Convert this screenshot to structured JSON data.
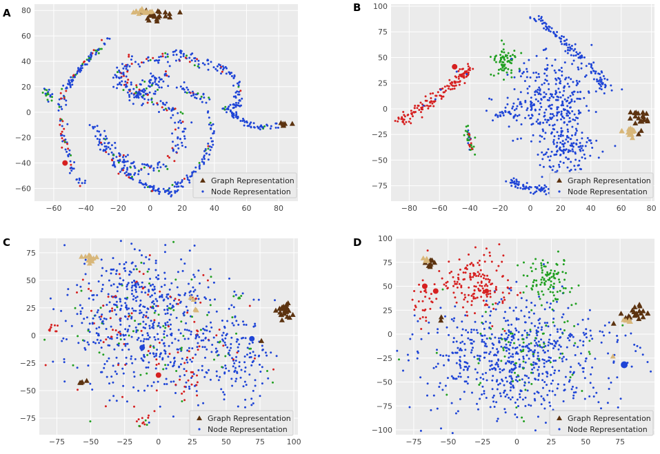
{
  "figure": {
    "legend_graph": "Graph Representation",
    "legend_node": "Node Representation",
    "colors": {
      "background": "#ebebeb",
      "grid": "#ffffff",
      "node_blue": "#1f45d6",
      "node_red": "#d62020",
      "node_green": "#22a022",
      "graph_dark": "#5c3310",
      "graph_tan": "#d8b77a"
    }
  },
  "chart_data": [
    {
      "panel": "A",
      "type": "scatter",
      "xlim": [
        -72,
        92
      ],
      "ylim": [
        -70,
        85
      ],
      "xticks": [
        -60,
        -40,
        -20,
        0,
        20,
        40,
        60,
        80
      ],
      "yticks": [
        -60,
        -40,
        -20,
        0,
        20,
        40,
        60,
        80
      ],
      "xtick_labels": [
        "−60",
        "−40",
        "−20",
        "0",
        "20",
        "40",
        "60",
        "80"
      ],
      "ytick_labels": [
        "−60",
        "−40",
        "−20",
        "0",
        "20",
        "40",
        "60",
        "80"
      ],
      "legend": [
        "Graph Representation",
        "Node Representation"
      ],
      "graph_clusters": [
        {
          "color": "dark",
          "x": 5,
          "y": 76,
          "sx": 7,
          "sy": 2,
          "n": 22
        },
        {
          "color": "tan",
          "x": -6,
          "y": 79,
          "sx": 4,
          "sy": 1,
          "n": 14
        },
        {
          "color": "dark",
          "x": 84,
          "y": -9,
          "sx": 2,
          "sy": 1,
          "n": 6
        }
      ]
    },
    {
      "panel": "B",
      "type": "scatter",
      "xlim": [
        -92,
        82
      ],
      "ylim": [
        -90,
        102
      ],
      "xticks": [
        -80,
        -60,
        -40,
        -20,
        0,
        20,
        40,
        60,
        80
      ],
      "yticks": [
        -75,
        -50,
        -25,
        0,
        25,
        50,
        75,
        100
      ],
      "xtick_labels": [
        "−80",
        "−60",
        "−40",
        "−20",
        "0",
        "20",
        "40",
        "60",
        "80"
      ],
      "ytick_labels": [
        "−75",
        "−50",
        "−25",
        "0",
        "25",
        "50",
        "75",
        "100"
      ],
      "legend": [
        "Graph Representation",
        "Node Representation"
      ],
      "graph_clusters": [
        {
          "color": "dark",
          "x": 72,
          "y": -8,
          "sx": 3,
          "sy": 6,
          "n": 20
        },
        {
          "color": "tan",
          "x": 66,
          "y": -22,
          "sx": 3,
          "sy": 3,
          "n": 16
        }
      ]
    },
    {
      "panel": "C",
      "type": "scatter",
      "xlim": [
        -88,
        103
      ],
      "ylim": [
        -90,
        88
      ],
      "xticks": [
        -75,
        -50,
        -25,
        0,
        25,
        50,
        75,
        100
      ],
      "yticks": [
        -75,
        -50,
        -25,
        0,
        25,
        50,
        75
      ],
      "xtick_labels": [
        "−75",
        "−50",
        "−25",
        "0",
        "25",
        "50",
        "75",
        "100"
      ],
      "ytick_labels": [
        "−75",
        "−50",
        "−25",
        "0",
        "25",
        "50",
        "75"
      ],
      "legend": [
        "Graph Representation",
        "Node Representation"
      ],
      "graph_clusters": [
        {
          "color": "tan",
          "x": -51,
          "y": 70,
          "sx": 3,
          "sy": 2,
          "n": 14
        },
        {
          "color": "dark",
          "x": 93,
          "y": 21,
          "sx": 3,
          "sy": 4,
          "n": 20
        },
        {
          "color": "dark",
          "x": -56,
          "y": -43,
          "sx": 1.5,
          "sy": 1.5,
          "n": 4
        },
        {
          "color": "tan",
          "x": 25,
          "y": 33,
          "sx": 1,
          "sy": 1,
          "n": 2
        },
        {
          "color": "tan",
          "x": 28,
          "y": 24,
          "sx": 1,
          "sy": 1,
          "n": 2
        },
        {
          "color": "dark",
          "x": 76,
          "y": -5,
          "sx": 0.5,
          "sy": 0.5,
          "n": 1
        }
      ]
    },
    {
      "panel": "D",
      "type": "scatter",
      "xlim": [
        -88,
        100
      ],
      "ylim": [
        -105,
        100
      ],
      "xticks": [
        -75,
        -50,
        -25,
        0,
        25,
        50,
        75
      ],
      "yticks": [
        -100,
        -75,
        -50,
        -25,
        0,
        25,
        50,
        75,
        100
      ],
      "xtick_labels": [
        "−75",
        "−50",
        "−25",
        "0",
        "25",
        "50",
        "75"
      ],
      "ytick_labels": [
        "−100",
        "−75",
        "−50",
        "−25",
        "0",
        "25",
        "50",
        "75",
        "100"
      ],
      "legend": [
        "Graph Representation",
        "Node Representation"
      ],
      "graph_clusters": [
        {
          "color": "dark",
          "x": -63,
          "y": 73,
          "sx": 2,
          "sy": 3,
          "n": 10
        },
        {
          "color": "tan",
          "x": -66,
          "y": 78,
          "sx": 2,
          "sy": 2,
          "n": 6
        },
        {
          "color": "dark",
          "x": 88,
          "y": 20,
          "sx": 5,
          "sy": 4,
          "n": 22
        },
        {
          "color": "tan",
          "x": 80,
          "y": 14,
          "sx": 2,
          "sy": 1,
          "n": 5
        },
        {
          "color": "dark",
          "x": -56,
          "y": 15,
          "sx": 1,
          "sy": 1,
          "n": 2
        },
        {
          "color": "tan",
          "x": 70,
          "y": -25,
          "sx": 1,
          "sy": 1,
          "n": 1
        }
      ]
    }
  ]
}
